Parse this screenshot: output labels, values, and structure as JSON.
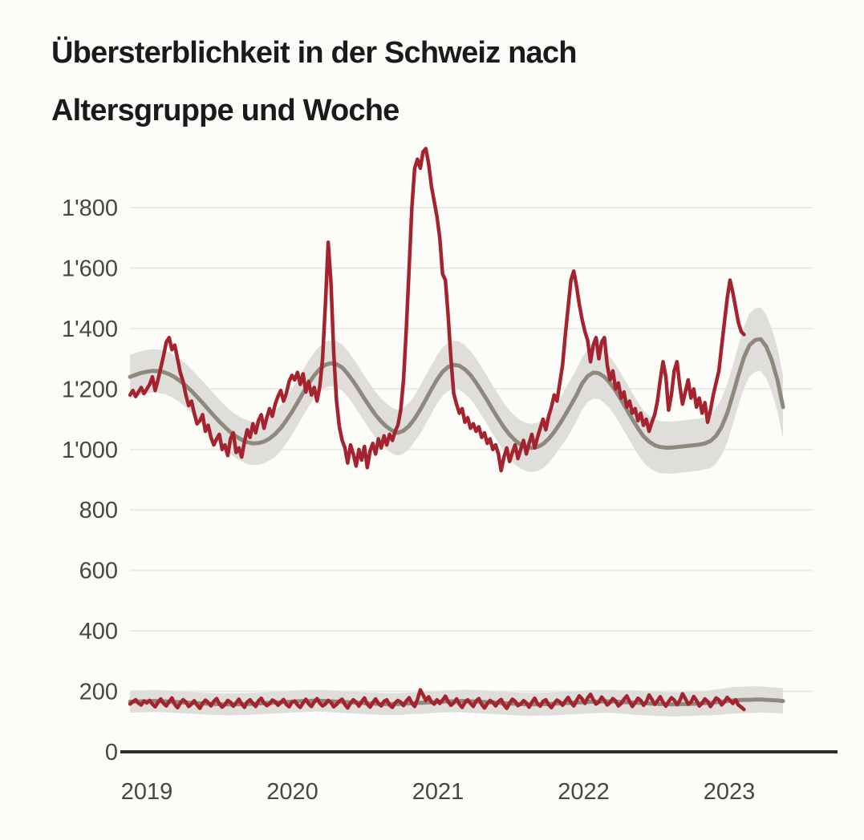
{
  "title": {
    "line1": "Übersterblichkeit in der Schweiz nach",
    "line2": "Altersgruppe und Woche"
  },
  "colors": {
    "background": "#fcfcf9",
    "title": "#1a1a1c",
    "axis_label": "#4a4540",
    "gridline": "#ebeae7",
    "axis_line": "#2e2d29",
    "observed_line": "#a4232e",
    "expected_line": "#8d897d",
    "expected_band": "#dfdedb"
  },
  "chart_data": {
    "type": "line",
    "title": "Übersterblichkeit in der Schweiz nach Altersgruppe und Woche",
    "grid": "horizontal",
    "legend_position": "none",
    "x_axis": {
      "ticks": [
        2019,
        2020,
        2021,
        2022,
        2023
      ],
      "labels": [
        "2019",
        "2020",
        "2021",
        "2022",
        "2023"
      ],
      "range": [
        2018.885,
        2023.57
      ]
    },
    "y_axis": {
      "ticks": [
        0,
        200,
        400,
        600,
        800,
        1000,
        1200,
        1400,
        1600,
        1800
      ],
      "labels": [
        "0",
        "200",
        "400",
        "600",
        "800",
        "1'000",
        "1'200",
        "1'400",
        "1'600",
        "1'800"
      ],
      "range": [
        0,
        2060
      ]
    },
    "groups": [
      {
        "name": "aeltere-altersgruppe-65plus",
        "observed": {
          "name": "beobachtete-todesfaelle-65plus",
          "color": "#a4232e",
          "x_start": 2018.885,
          "dx_weeks": 1,
          "values": [
            1180,
            1195,
            1175,
            1190,
            1205,
            1185,
            1200,
            1215,
            1240,
            1195,
            1230,
            1270,
            1310,
            1355,
            1370,
            1330,
            1345,
            1300,
            1255,
            1225,
            1180,
            1145,
            1160,
            1120,
            1085,
            1095,
            1115,
            1060,
            1080,
            1040,
            1015,
            1035,
            1050,
            1000,
            1015,
            980,
            1035,
            1055,
            990,
            1005,
            975,
            1025,
            1065,
            1040,
            1085,
            1055,
            1095,
            1115,
            1070,
            1105,
            1135,
            1110,
            1150,
            1175,
            1195,
            1160,
            1185,
            1225,
            1245,
            1230,
            1255,
            1215,
            1250,
            1190,
            1225,
            1180,
            1205,
            1160,
            1210,
            1300,
            1480,
            1685,
            1550,
            1320,
            1160,
            1075,
            1030,
            1005,
            955,
            1015,
            985,
            945,
            1000,
            965,
            1010,
            940,
            995,
            1020,
            985,
            1035,
            1005,
            1045,
            1015,
            1050,
            1030,
            1060,
            1080,
            1130,
            1230,
            1400,
            1600,
            1800,
            1930,
            1960,
            1930,
            1985,
            1995,
            1945,
            1870,
            1820,
            1770,
            1700,
            1580,
            1560,
            1440,
            1300,
            1185,
            1150,
            1120,
            1135,
            1090,
            1105,
            1070,
            1085,
            1060,
            1075,
            1040,
            1055,
            1020,
            1035,
            1000,
            1015,
            985,
            930,
            975,
            1005,
            960,
            990,
            1015,
            970,
            1000,
            1030,
            985,
            1020,
            1050,
            1005,
            1040,
            1070,
            1100,
            1065,
            1110,
            1140,
            1180,
            1160,
            1220,
            1280,
            1380,
            1470,
            1560,
            1590,
            1540,
            1480,
            1430,
            1390,
            1360,
            1290,
            1345,
            1370,
            1300,
            1355,
            1370,
            1280,
            1230,
            1260,
            1200,
            1220,
            1170,
            1190,
            1140,
            1160,
            1120,
            1135,
            1095,
            1120,
            1080,
            1100,
            1060,
            1090,
            1115,
            1160,
            1230,
            1290,
            1240,
            1130,
            1180,
            1260,
            1290,
            1210,
            1150,
            1190,
            1230,
            1170,
            1200,
            1140,
            1170,
            1120,
            1155,
            1090,
            1130,
            1180,
            1220,
            1260,
            1340,
            1420,
            1500,
            1560,
            1520,
            1470,
            1420,
            1390,
            1380
          ]
        },
        "expected": {
          "name": "erwartete-todesfaelle-65plus",
          "color": "#8d897d",
          "x_start": 2018.885,
          "dx_weeks": 2,
          "values": [
            1240,
            1247,
            1253,
            1257,
            1260,
            1259,
            1256,
            1249,
            1239,
            1226,
            1211,
            1193,
            1174,
            1154,
            1133,
            1112,
            1092,
            1074,
            1057,
            1043,
            1032,
            1024,
            1020,
            1021,
            1026,
            1036,
            1051,
            1071,
            1096,
            1124,
            1155,
            1187,
            1218,
            1245,
            1266,
            1280,
            1285,
            1282,
            1271,
            1250,
            1225,
            1197,
            1168,
            1140,
            1114,
            1092,
            1075,
            1062,
            1055,
            1062,
            1078,
            1102,
            1132,
            1165,
            1199,
            1231,
            1257,
            1273,
            1280,
            1277,
            1265,
            1246,
            1221,
            1192,
            1162,
            1131,
            1101,
            1073,
            1049,
            1030,
            1016,
            1008,
            1005,
            1008,
            1018,
            1035,
            1058,
            1085,
            1115,
            1147,
            1180,
            1218,
            1243,
            1254,
            1252,
            1240,
            1220,
            1194,
            1164,
            1132,
            1100,
            1070,
            1044,
            1026,
            1014,
            1008,
            1006,
            1006,
            1008,
            1010,
            1012,
            1014,
            1016,
            1020,
            1028,
            1045,
            1075,
            1120,
            1180,
            1245,
            1305,
            1345,
            1362,
            1365,
            1340,
            1295,
            1230,
            1140
          ]
        },
        "band": {
          "name": "erwartungsbereich-65plus",
          "color": "#dfdedb",
          "x_start": 2018.885,
          "dx_weeks": 2,
          "halfwidth": [
            72,
            72,
            72,
            72,
            72,
            72,
            72,
            72,
            72,
            72,
            72,
            72,
            72,
            72,
            72,
            72,
            72,
            72,
            72,
            72,
            72,
            72,
            72,
            72,
            72,
            72,
            76,
            76,
            76,
            76,
            76,
            76,
            76,
            76,
            76,
            76,
            76,
            76,
            76,
            76,
            76,
            76,
            76,
            76,
            76,
            76,
            76,
            76,
            76,
            76,
            76,
            76,
            80,
            80,
            80,
            80,
            80,
            80,
            80,
            80,
            80,
            80,
            80,
            80,
            80,
            80,
            80,
            80,
            80,
            80,
            80,
            80,
            80,
            80,
            80,
            80,
            80,
            80,
            86,
            86,
            86,
            86,
            86,
            86,
            86,
            86,
            86,
            86,
            86,
            86,
            86,
            86,
            86,
            86,
            86,
            86,
            86,
            86,
            86,
            86,
            86,
            86,
            86,
            86,
            90,
            92,
            94,
            96,
            98,
            100,
            102,
            104,
            105,
            105,
            105,
            105,
            105,
            105
          ]
        }
      },
      {
        "name": "juengere-altersgruppe-0-64",
        "observed": {
          "name": "beobachtete-todesfaelle-0-64",
          "color": "#a4232e",
          "x_start": 2018.885,
          "dx_weeks": 1,
          "values": [
            158,
            166,
            172,
            161,
            155,
            168,
            162,
            170,
            158,
            149,
            163,
            175,
            160,
            152,
            166,
            178,
            157,
            146,
            161,
            172,
            165,
            150,
            158,
            169,
            155,
            144,
            160,
            171,
            163,
            152,
            167,
            176,
            159,
            148,
            156,
            170,
            164,
            151,
            162,
            174,
            158,
            147,
            165,
            172,
            160,
            150,
            168,
            177,
            162,
            153,
            159,
            171,
            166,
            154,
            163,
            173,
            157,
            149,
            164,
            168,
            155,
            147,
            162,
            174,
            159,
            150,
            165,
            176,
            161,
            152,
            158,
            170,
            163,
            149,
            157,
            168,
            174,
            156,
            145,
            161,
            172,
            164,
            151,
            166,
            178,
            158,
            148,
            163,
            175,
            160,
            152,
            167,
            172,
            155,
            147,
            162,
            170,
            164,
            153,
            168,
            179,
            161,
            150,
            173,
            205,
            188,
            170,
            182,
            165,
            158,
            172,
            160,
            171,
            184,
            166,
            154,
            162,
            175,
            158,
            147,
            163,
            172,
            160,
            150,
            168,
            176,
            157,
            145,
            159,
            170,
            164,
            152,
            166,
            173,
            155,
            144,
            161,
            174,
            167,
            153,
            158,
            169,
            162,
            148,
            164,
            177,
            159,
            151,
            167,
            172,
            156,
            146,
            160,
            171,
            165,
            154,
            168,
            180,
            163,
            152,
            170,
            185,
            175,
            160,
            178,
            190,
            172,
            158,
            165,
            181,
            170,
            155,
            163,
            176,
            168,
            152,
            160,
            174,
            185,
            166,
            150,
            162,
            177,
            170,
            154,
            165,
            188,
            173,
            157,
            168,
            182,
            164,
            151,
            166,
            179,
            171,
            156,
            169,
            192,
            176,
            158,
            164,
            183,
            170,
            152,
            161,
            175,
            167,
            150,
            163,
            178,
            172,
            155,
            165,
            180,
            170,
            160,
            172,
            155,
            148,
            140
          ]
        },
        "expected": {
          "name": "erwartete-todesfaelle-0-64",
          "color": "#8d897d",
          "x_start": 2018.885,
          "dx_weeks": 2,
          "values": [
            166,
            166,
            167,
            167,
            168,
            168,
            167,
            166,
            165,
            164,
            163,
            162,
            161,
            160,
            159,
            158,
            158,
            157,
            157,
            157,
            158,
            158,
            159,
            160,
            161,
            162,
            163,
            164,
            165,
            166,
            167,
            168,
            168,
            169,
            169,
            168,
            167,
            166,
            165,
            164,
            163,
            162,
            161,
            160,
            159,
            158,
            158,
            158,
            158,
            159,
            160,
            161,
            162,
            163,
            164,
            165,
            166,
            167,
            167,
            168,
            168,
            167,
            166,
            165,
            164,
            163,
            162,
            161,
            160,
            159,
            158,
            157,
            157,
            157,
            158,
            158,
            159,
            160,
            161,
            162,
            163,
            164,
            165,
            166,
            166,
            167,
            167,
            166,
            165,
            164,
            163,
            162,
            161,
            160,
            159,
            158,
            158,
            157,
            157,
            158,
            158,
            159,
            160,
            161,
            162,
            164,
            166,
            168,
            170,
            171,
            172,
            172,
            173,
            173,
            172,
            171,
            170,
            168
          ]
        },
        "band": {
          "name": "erwartungsbereich-0-64",
          "color": "#dfdedb",
          "x_start": 2018.885,
          "dx_weeks": 2,
          "halfwidth": [
            36,
            36,
            36,
            36,
            36,
            36,
            36,
            36,
            36,
            36,
            36,
            36,
            36,
            36,
            36,
            36,
            36,
            36,
            36,
            36,
            36,
            36,
            36,
            36,
            36,
            36,
            36,
            36,
            36,
            36,
            36,
            36,
            36,
            36,
            36,
            36,
            36,
            36,
            36,
            36,
            36,
            36,
            36,
            36,
            36,
            36,
            36,
            36,
            36,
            36,
            36,
            36,
            36,
            36,
            36,
            36,
            36,
            36,
            36,
            36,
            38,
            38,
            38,
            38,
            38,
            38,
            38,
            38,
            38,
            38,
            38,
            38,
            38,
            38,
            38,
            38,
            38,
            38,
            38,
            38,
            38,
            38,
            38,
            38,
            38,
            38,
            38,
            38,
            38,
            38,
            40,
            40,
            40,
            40,
            40,
            40,
            40,
            40,
            40,
            40,
            40,
            40,
            40,
            40,
            42,
            42,
            43,
            43,
            44,
            44,
            44,
            44,
            44,
            43,
            43,
            42,
            42,
            42
          ]
        }
      }
    ]
  }
}
